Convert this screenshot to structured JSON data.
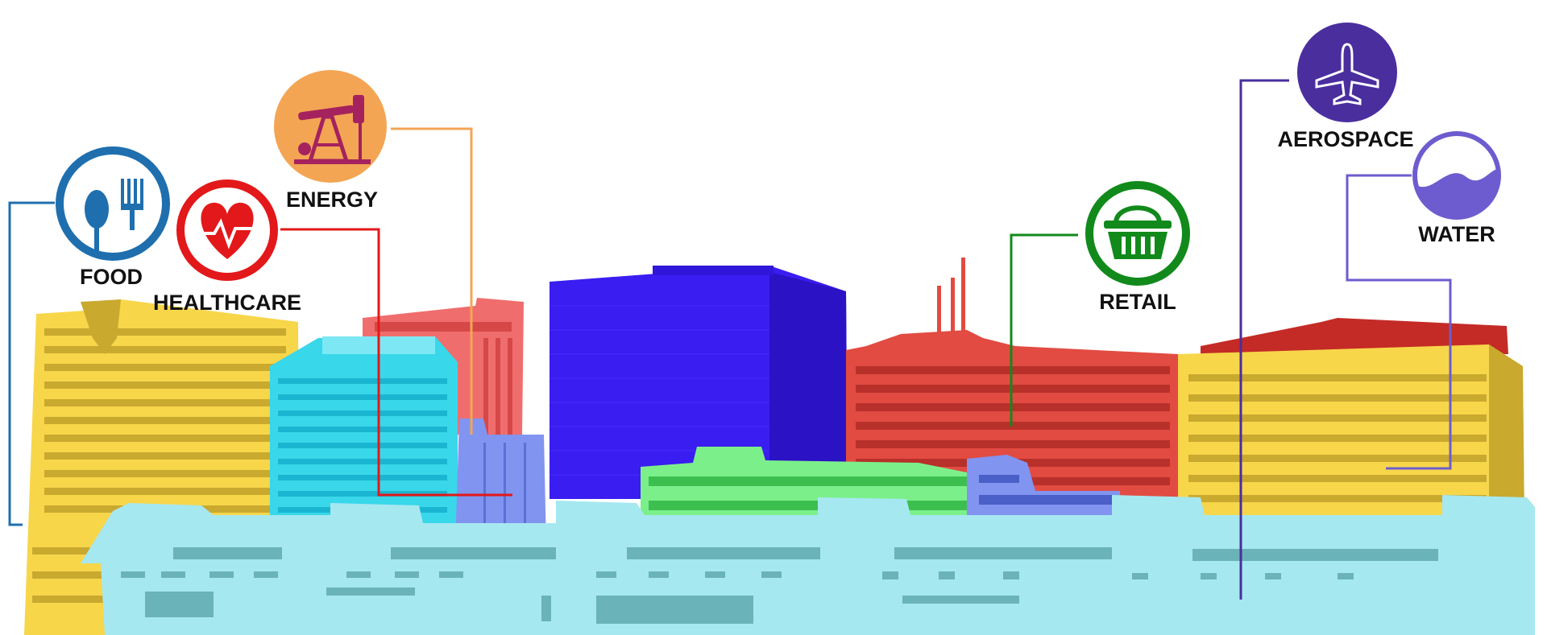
{
  "sectors": [
    {
      "id": "food",
      "label": "FOOD",
      "icon": "fork-spoon-icon",
      "color": "#1f6fae"
    },
    {
      "id": "healthcare",
      "label": "HEALTHCARE",
      "icon": "heart-pulse-icon",
      "color": "#e3181a"
    },
    {
      "id": "energy",
      "label": "ENERGY",
      "icon": "oil-pumpjack-icon",
      "color": "#f3a554"
    },
    {
      "id": "retail",
      "label": "RETAIL",
      "icon": "shopping-basket-icon",
      "color": "#118a1b"
    },
    {
      "id": "aerospace",
      "label": "AEROSPACE",
      "icon": "airplane-icon",
      "color": "#4a2e9e"
    },
    {
      "id": "water",
      "label": "WATER",
      "icon": "water-wave-icon",
      "color": "#6c5ccf"
    }
  ],
  "palette": {
    "yellow_building": "#f7d64a",
    "cyan_building": "#38d7ea",
    "salmon_building": "#f06d6d",
    "blue_tower": "#3a1df0",
    "periwinkle_building": "#8194f0",
    "green_building": "#7bf08a",
    "red_building": "#e24b42",
    "foreground_water": "#a6e8f0"
  }
}
